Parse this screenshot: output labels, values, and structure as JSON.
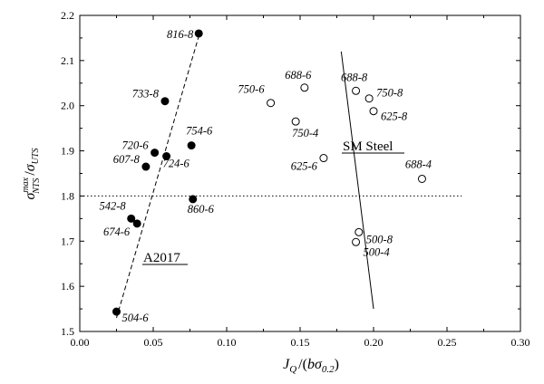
{
  "chart_data": {
    "type": "scatter",
    "xlabel": {
      "J": "J",
      "Q": "Q",
      "slash": "/",
      "open": "(",
      "b": "b",
      "sigma": "σ",
      "sub": "0.2",
      "close": ")"
    },
    "ylabel": {
      "sigma1": "σ",
      "sup": "max",
      "sub1": "NTS",
      "slash": "/",
      "sigma2": "σ",
      "sub2": "UTS"
    },
    "xlim": [
      0.0,
      0.3
    ],
    "ylim": [
      1.5,
      2.2
    ],
    "x_ticks": [
      "0.00",
      "0.05",
      "0.10",
      "0.15",
      "0.20",
      "0.25",
      "0.30"
    ],
    "y_ticks": [
      "1.5",
      "1.6",
      "1.7",
      "1.8",
      "1.9",
      "2.0",
      "2.1",
      "2.2"
    ],
    "reference_line_y": 1.8,
    "series": [
      {
        "name": "A2017",
        "marker": "filled",
        "points": [
          {
            "label": "816-8",
            "x": 0.081,
            "y": 2.16
          },
          {
            "label": "733-8",
            "x": 0.058,
            "y": 2.01
          },
          {
            "label": "720-6",
            "x": 0.051,
            "y": 1.896
          },
          {
            "label": "754-6",
            "x": 0.076,
            "y": 1.912
          },
          {
            "label": "724-6",
            "x": 0.059,
            "y": 1.888
          },
          {
            "label": "607-8",
            "x": 0.045,
            "y": 1.865
          },
          {
            "label": "860-6",
            "x": 0.077,
            "y": 1.793
          },
          {
            "label": "542-8",
            "x": 0.035,
            "y": 1.75
          },
          {
            "label": "674-6",
            "x": 0.039,
            "y": 1.739
          },
          {
            "label": "504-6",
            "x": 0.025,
            "y": 1.544
          }
        ],
        "trend": {
          "style": "dashed",
          "x": [
            0.025,
            0.082
          ],
          "y": [
            1.53,
            2.165
          ]
        }
      },
      {
        "name": "SM Steel",
        "marker": "open",
        "points": [
          {
            "label": "750-6",
            "x": 0.13,
            "y": 2.006
          },
          {
            "label": "688-6",
            "x": 0.153,
            "y": 2.04
          },
          {
            "label": "750-4",
            "x": 0.147,
            "y": 1.965
          },
          {
            "label": "688-8",
            "x": 0.188,
            "y": 2.033
          },
          {
            "label": "750-8",
            "x": 0.197,
            "y": 2.016
          },
          {
            "label": "625-8",
            "x": 0.2,
            "y": 1.988
          },
          {
            "label": "625-6",
            "x": 0.166,
            "y": 1.884
          },
          {
            "label": "688-4",
            "x": 0.233,
            "y": 1.838
          },
          {
            "label": "500-8",
            "x": 0.19,
            "y": 1.72
          },
          {
            "label": "500-4",
            "x": 0.188,
            "y": 1.698
          }
        ],
        "trend": {
          "style": "solid",
          "x": [
            0.178,
            0.2
          ],
          "y": [
            2.12,
            1.55
          ]
        }
      }
    ]
  }
}
